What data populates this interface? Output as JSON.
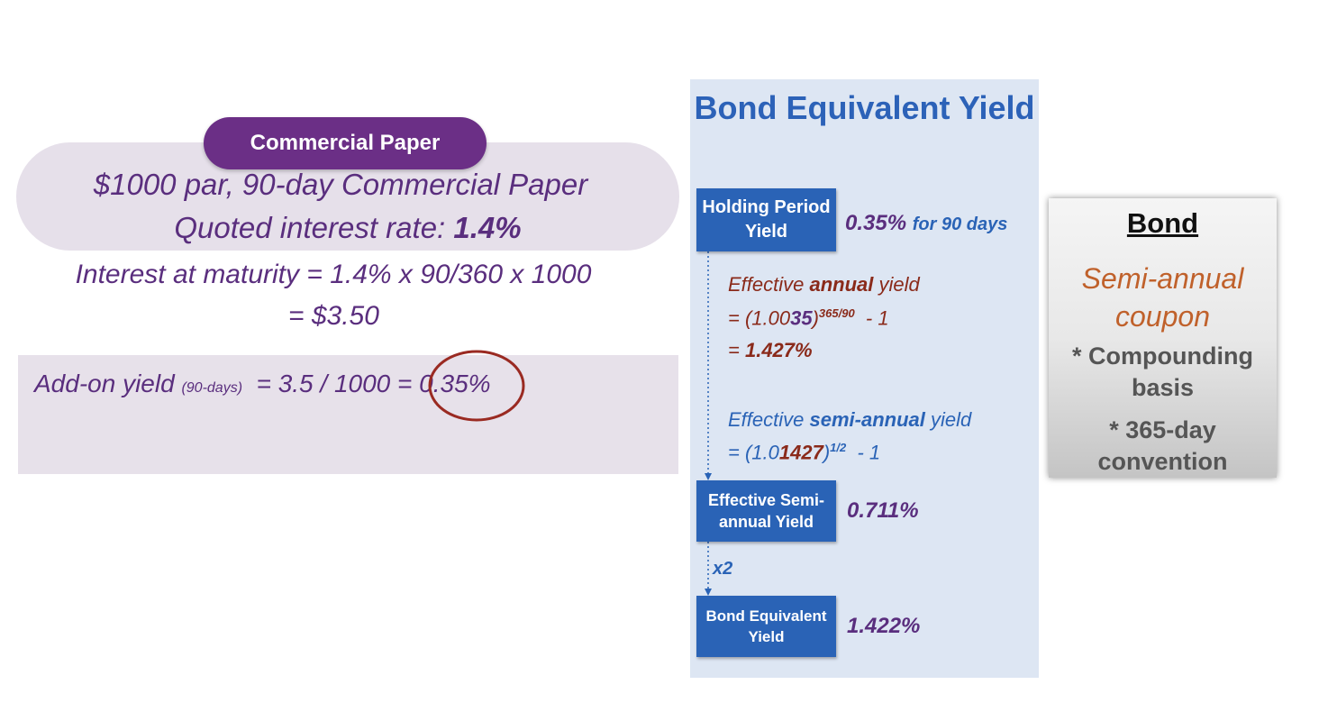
{
  "commercial_paper": {
    "pill_label": "Commercial Paper",
    "line1": "$1000 par, 90-day Commercial Paper",
    "line2_prefix": "Quoted interest rate: ",
    "line2_rate": "1.4%",
    "interest_line1": "Interest at maturity = 1.4% x 90/360 x 1000",
    "interest_line2": "= $3.50",
    "addon_label": "Add-on yield ",
    "addon_small": "(90-days)",
    "addon_formula": "  = 3.5 / 1000 = ",
    "addon_result": "0.35%",
    "colors": {
      "purple": "#6b2f86",
      "panel": "#e6e0ea",
      "circle": "#9a2a22"
    }
  },
  "bey": {
    "title": "Bond Equivalent Yield",
    "hpy_box": "Holding Period Yield",
    "hpy_value": "0.35%",
    "hpy_suffix": "for 90 days",
    "eay": {
      "label_pre": "Effective ",
      "label_bold": "annual",
      "label_post": " yield",
      "formula_pre": "= (1.00",
      "formula_bold": "35",
      "formula_post": ")",
      "formula_exp": "365/90",
      "formula_tail": "  - 1",
      "result_pre": "= ",
      "result_bold": "1.427%"
    },
    "esay": {
      "label_pre": "Effective ",
      "label_bold": "semi-annual",
      "label_post": " yield",
      "formula_pre": "= (1.0",
      "formula_bold": "1427",
      "formula_post": ")",
      "formula_exp": "1/2",
      "formula_tail": "  - 1"
    },
    "esy_box": "Effective Semi-annual Yield",
    "esy_value": "0.711%",
    "multiplier": "x2",
    "bey_box": "Bond Equivalent Yield",
    "bey_value": "1.422%",
    "colors": {
      "box": "#2a63b6",
      "panel": "#dde6f3"
    }
  },
  "bond": {
    "title": "Bond",
    "coupon": "Semi-annual coupon",
    "compounding": "* Compounding basis",
    "convention": "* 365-day convention",
    "colors": {
      "coupon": "#c0612b",
      "text": "#555555"
    }
  }
}
